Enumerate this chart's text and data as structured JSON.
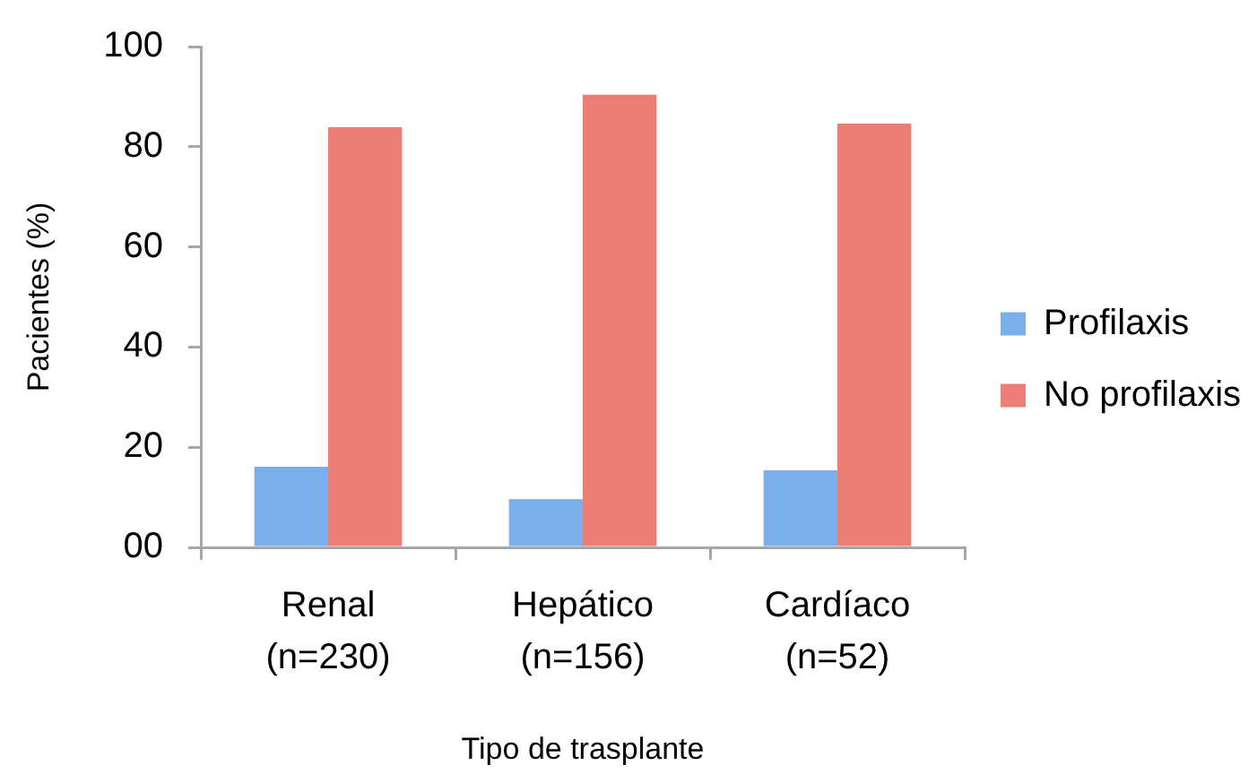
{
  "chart_data": {
    "type": "bar",
    "xlabel": "Tipo de trasplante",
    "ylabel": "Pacientes (%)",
    "categories": [
      "Renal\n(n=230)",
      "Hepático\n(n=156)",
      "Cardíaco\n(n=52)"
    ],
    "series": [
      {
        "name": "Profilaxis",
        "color": "#7aafec",
        "values": [
          16.1,
          9.6,
          15.4
        ]
      },
      {
        "name": "No profilaxis",
        "color": "#ec7e75",
        "values": [
          83.9,
          90.4,
          84.6
        ]
      }
    ],
    "ylim": [
      0,
      100
    ],
    "yticks": [
      {
        "value": 0,
        "label": "00"
      },
      20,
      40,
      60,
      80,
      100
    ],
    "grid": false,
    "legend": "right"
  }
}
